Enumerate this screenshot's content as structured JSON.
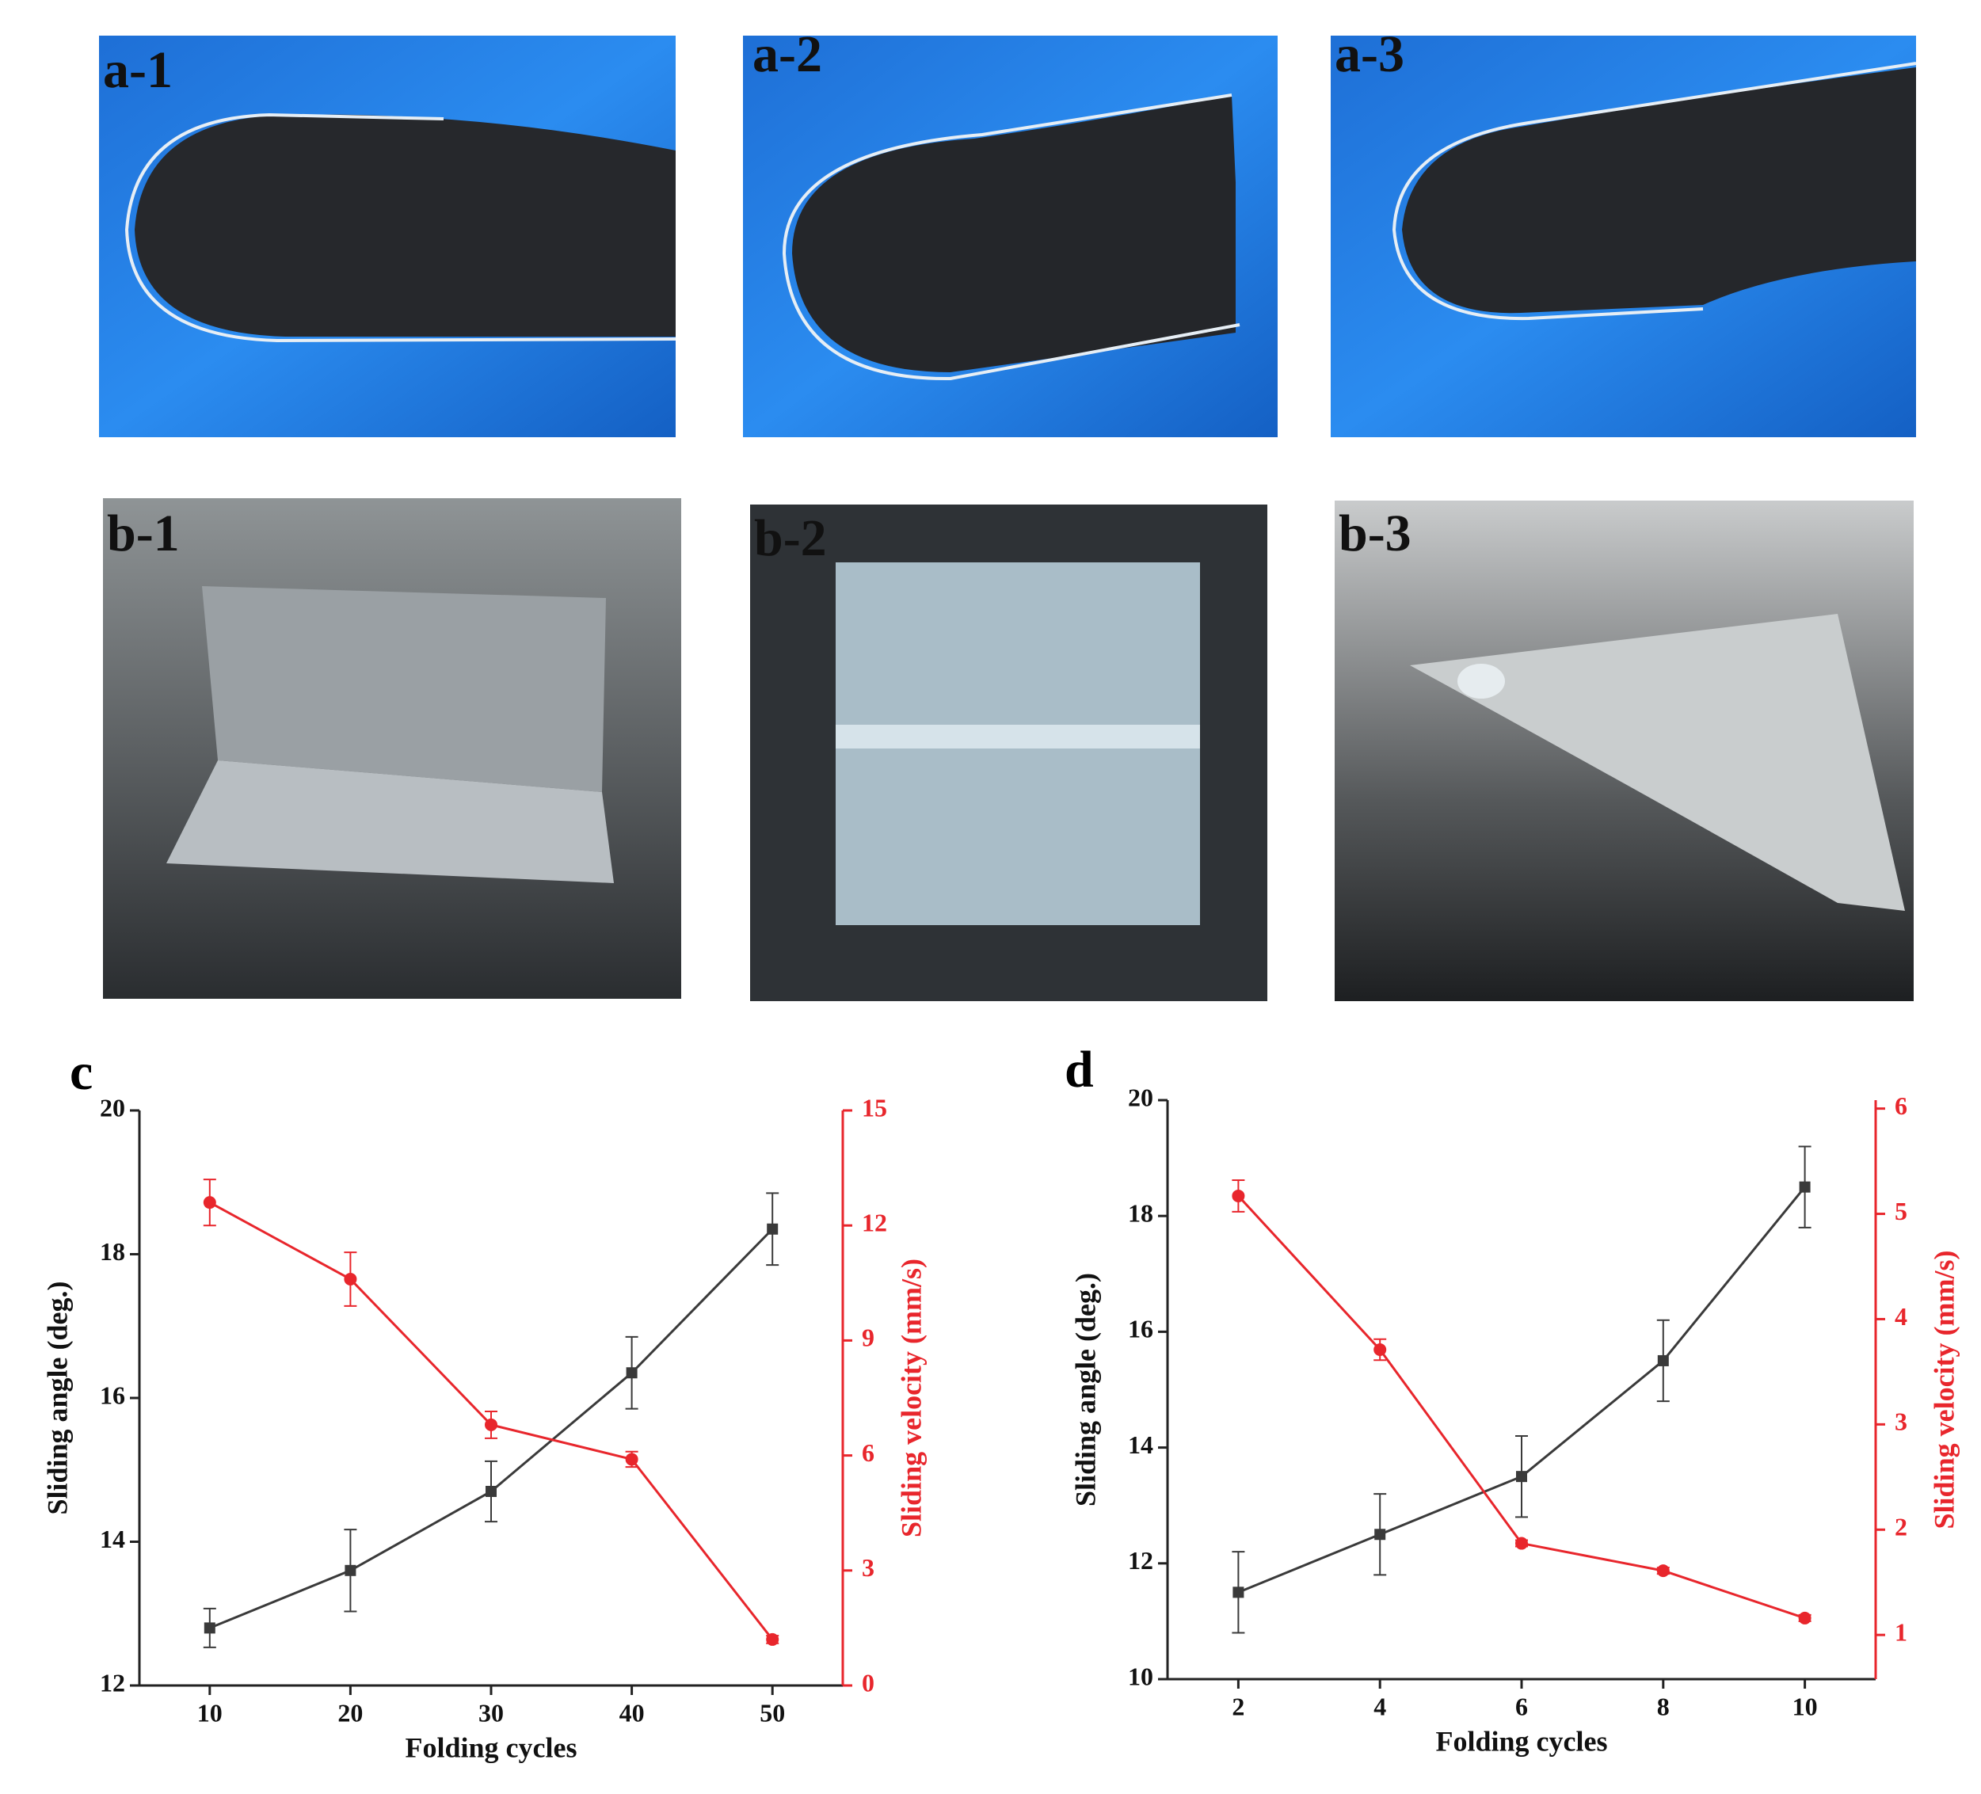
{
  "photos": [
    {
      "label": "a-1"
    },
    {
      "label": "a-2"
    },
    {
      "label": "a-3"
    },
    {
      "label": "b-1"
    },
    {
      "label": "b-2"
    },
    {
      "label": "b-3"
    }
  ],
  "chart_data": [
    {
      "type": "line",
      "panel_label": "c",
      "x_label": "Folding cycles",
      "y_label": "Sliding angle (deg.)",
      "y2_label": "Sliding velocity (mm/s)",
      "x": [
        10,
        20,
        30,
        40,
        50
      ],
      "xlim": [
        5,
        55
      ],
      "xticks": [
        10,
        20,
        30,
        40,
        50
      ],
      "ylim": [
        12,
        20
      ],
      "yticks": [
        12,
        14,
        16,
        18,
        20
      ],
      "y2lim": [
        0,
        15
      ],
      "y2ticks": [
        0,
        3,
        6,
        9,
        12,
        15
      ],
      "series": [
        {
          "color": "#3a3a3a",
          "marker": "square",
          "values": [
            12.8,
            13.6,
            14.7,
            16.35,
            18.35
          ],
          "errors": [
            0.27,
            0.57,
            0.42,
            0.5,
            0.5
          ]
        },
        {
          "color": "#e8262c",
          "marker": "circle",
          "axis": "y2",
          "values": [
            12.6,
            10.6,
            6.8,
            5.9,
            1.2
          ],
          "errors": [
            0.6,
            0.7,
            0.35,
            0.2,
            0.1
          ]
        }
      ]
    },
    {
      "type": "line",
      "panel_label": "d",
      "x_label": "Folding cycles",
      "y_label": "Sliding angle (deg.)",
      "y2_label": "Sliding velocity (mm/s)",
      "x": [
        2,
        4,
        6,
        8,
        10
      ],
      "xlim": [
        1,
        11
      ],
      "xticks": [
        2,
        4,
        6,
        8,
        10
      ],
      "ylim": [
        10,
        20
      ],
      "yticks": [
        10,
        12,
        14,
        16,
        18,
        20
      ],
      "y2lim": [
        0.58,
        6.08
      ],
      "y2ticks": [
        1,
        2,
        3,
        4,
        5,
        6
      ],
      "series": [
        {
          "color": "#3a3a3a",
          "marker": "square",
          "values": [
            11.5,
            12.5,
            13.5,
            15.5,
            18.5
          ],
          "errors": [
            0.7,
            0.7,
            0.7,
            0.7,
            0.7
          ]
        },
        {
          "color": "#e8262c",
          "marker": "circle",
          "axis": "y2",
          "values": [
            5.17,
            3.71,
            1.87,
            1.61,
            1.16
          ],
          "errors": [
            0.15,
            0.1,
            0.03,
            0.03,
            0.03
          ]
        }
      ]
    }
  ]
}
